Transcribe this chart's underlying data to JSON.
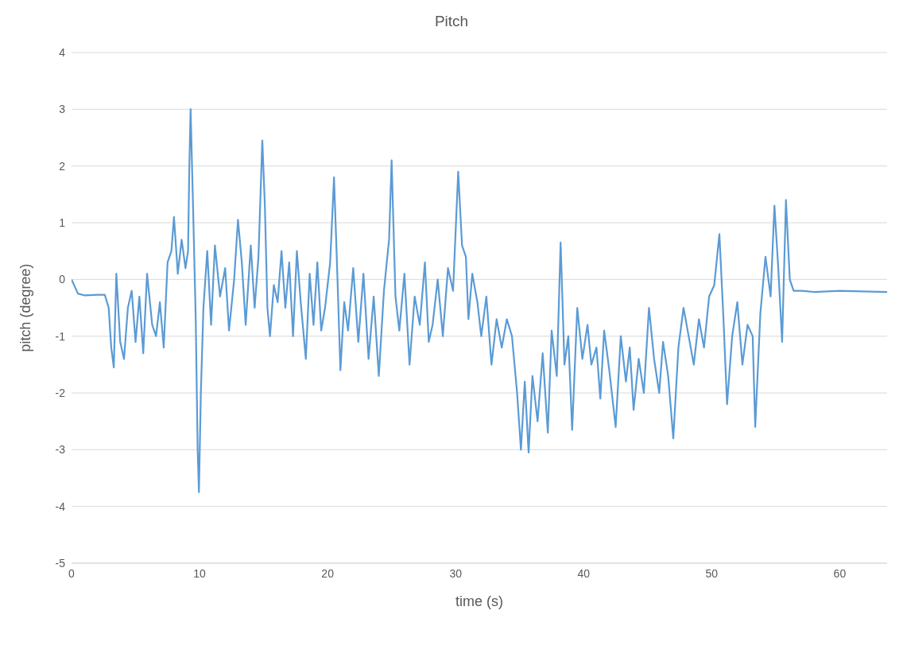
{
  "chart_data": {
    "type": "line",
    "title": "Pitch",
    "xlabel": "time (s)",
    "ylabel": "pitch (degree)",
    "xlim": [
      0,
      63.7
    ],
    "xticks": [
      0,
      10,
      20,
      30,
      40,
      50,
      60
    ],
    "ylim": [
      -5,
      4
    ],
    "yticks": [
      -5,
      -4,
      -3,
      -2,
      -1,
      0,
      1,
      2,
      3,
      4
    ],
    "grid": "y",
    "marker": "none",
    "line_style": "solid",
    "series": [
      {
        "color": "#5b9bd5",
        "x": [
          0,
          0.5,
          1,
          2,
          2.6,
          2.9,
          3.1,
          3.3,
          3.5,
          3.8,
          4.1,
          4.4,
          4.7,
          5.0,
          5.3,
          5.6,
          5.9,
          6.3,
          6.6,
          6.9,
          7.2,
          7.5,
          7.8,
          8.0,
          8.3,
          8.6,
          8.9,
          9.1,
          9.2,
          9.3,
          9.5,
          9.7,
          9.85,
          9.95,
          10.1,
          10.3,
          10.6,
          10.9,
          11.2,
          11.6,
          12.0,
          12.3,
          12.7,
          13.0,
          13.3,
          13.6,
          14.0,
          14.3,
          14.6,
          14.9,
          15.1,
          15.3,
          15.5,
          15.8,
          16.1,
          16.4,
          16.7,
          17.0,
          17.3,
          17.6,
          17.9,
          18.3,
          18.6,
          18.9,
          19.2,
          19.5,
          19.8,
          20.2,
          20.5,
          20.7,
          21.0,
          21.3,
          21.6,
          22.0,
          22.4,
          22.8,
          23.2,
          23.6,
          24.0,
          24.4,
          24.8,
          25.0,
          25.3,
          25.6,
          26.0,
          26.4,
          26.8,
          27.2,
          27.6,
          27.9,
          28.2,
          28.6,
          29.0,
          29.4,
          29.8,
          30.2,
          30.5,
          30.8,
          31.0,
          31.3,
          31.7,
          32.0,
          32.4,
          32.8,
          33.2,
          33.6,
          34.0,
          34.4,
          34.8,
          35.1,
          35.4,
          35.7,
          36.0,
          36.4,
          36.8,
          37.2,
          37.5,
          37.9,
          38.2,
          38.5,
          38.8,
          39.1,
          39.5,
          39.9,
          40.3,
          40.6,
          41.0,
          41.3,
          41.6,
          42.0,
          42.5,
          42.9,
          43.3,
          43.6,
          43.9,
          44.3,
          44.7,
          45.1,
          45.5,
          45.9,
          46.2,
          46.6,
          47.0,
          47.4,
          47.8,
          48.2,
          48.6,
          49.0,
          49.4,
          49.8,
          50.2,
          50.6,
          50.9,
          51.2,
          51.6,
          52.0,
          52.4,
          52.8,
          53.2,
          53.4,
          53.8,
          54.2,
          54.6,
          54.9,
          55.2,
          55.5,
          55.8,
          56.1,
          56.4,
          57,
          58,
          60,
          63.7
        ],
        "values": [
          0,
          -0.25,
          -0.28,
          -0.27,
          -0.27,
          -0.5,
          -1.2,
          -1.55,
          0.1,
          -1.1,
          -1.4,
          -0.5,
          -0.2,
          -1.1,
          -0.3,
          -1.3,
          0.1,
          -0.8,
          -1.0,
          -0.4,
          -1.2,
          0.3,
          0.5,
          1.1,
          0.1,
          0.7,
          0.2,
          0.5,
          2.0,
          3.0,
          1.2,
          -0.7,
          -3.0,
          -3.75,
          -2.0,
          -0.5,
          0.5,
          -0.8,
          0.6,
          -0.3,
          0.2,
          -0.9,
          0.0,
          1.05,
          0.3,
          -0.8,
          0.6,
          -0.5,
          0.4,
          2.45,
          1.3,
          -0.5,
          -1.0,
          -0.1,
          -0.4,
          0.5,
          -0.5,
          0.3,
          -1.0,
          0.5,
          -0.4,
          -1.4,
          0.1,
          -0.8,
          0.3,
          -0.9,
          -0.5,
          0.3,
          1.8,
          0.5,
          -1.6,
          -0.4,
          -0.9,
          0.2,
          -1.1,
          0.1,
          -1.4,
          -0.3,
          -1.7,
          -0.2,
          0.7,
          2.1,
          -0.3,
          -0.9,
          0.1,
          -1.5,
          -0.3,
          -0.8,
          0.3,
          -1.1,
          -0.8,
          0.0,
          -1.0,
          0.2,
          -0.2,
          1.9,
          0.6,
          0.4,
          -0.7,
          0.1,
          -0.4,
          -1.0,
          -0.3,
          -1.5,
          -0.7,
          -1.2,
          -0.7,
          -1.0,
          -2.0,
          -3.0,
          -1.8,
          -3.05,
          -1.7,
          -2.5,
          -1.3,
          -2.7,
          -0.9,
          -1.7,
          0.65,
          -1.5,
          -1.0,
          -2.65,
          -0.5,
          -1.4,
          -0.8,
          -1.5,
          -1.2,
          -2.1,
          -0.9,
          -1.6,
          -2.6,
          -1.0,
          -1.8,
          -1.2,
          -2.3,
          -1.4,
          -2.0,
          -0.5,
          -1.4,
          -2.0,
          -1.1,
          -1.7,
          -2.8,
          -1.2,
          -0.5,
          -1.0,
          -1.5,
          -0.7,
          -1.2,
          -0.3,
          -0.1,
          0.8,
          -0.6,
          -2.2,
          -1.0,
          -0.4,
          -1.5,
          -0.8,
          -1.0,
          -2.6,
          -0.6,
          0.4,
          -0.3,
          1.3,
          0.2,
          -1.1,
          1.4,
          0.0,
          -0.2,
          -0.2,
          -0.22,
          -0.2,
          -0.22
        ]
      }
    ]
  }
}
